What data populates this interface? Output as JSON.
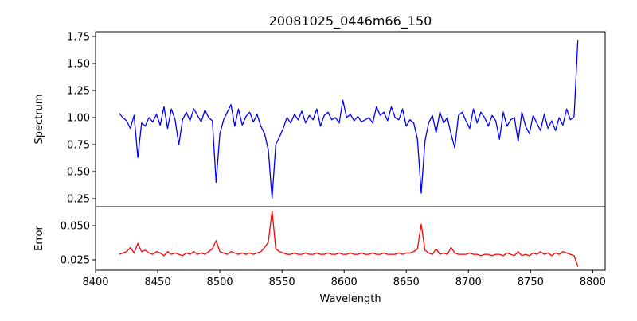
{
  "chart_data": [
    {
      "type": "line",
      "title": "20081025_0446m66_150",
      "xlabel": "",
      "ylabel": "Spectrum",
      "xlim": [
        8400,
        8810
      ],
      "ylim": [
        0.176,
        1.794
      ],
      "yticks": [
        0.25,
        0.5,
        0.75,
        1.0,
        1.25,
        1.5,
        1.75
      ],
      "ytick_labels": [
        "0.25",
        "0.50",
        "0.75",
        "1.00",
        "1.25",
        "1.50",
        "1.75"
      ],
      "color": "#0000ff",
      "x_start": 8419,
      "x_step": 3,
      "values": [
        1.04,
        1.0,
        0.97,
        0.9,
        1.02,
        0.63,
        0.95,
        0.92,
        1.0,
        0.96,
        1.03,
        0.93,
        1.1,
        0.9,
        1.08,
        0.98,
        0.75,
        0.98,
        1.05,
        0.97,
        1.08,
        1.02,
        0.96,
        1.07,
        1.0,
        0.97,
        0.4,
        0.85,
        0.98,
        1.05,
        1.12,
        0.92,
        1.08,
        0.93,
        1.01,
        1.05,
        0.96,
        1.03,
        0.92,
        0.85,
        0.7,
        0.25,
        0.75,
        0.82,
        0.9,
        1.0,
        0.95,
        1.03,
        0.98,
        1.06,
        0.95,
        1.02,
        0.98,
        1.08,
        0.92,
        1.02,
        1.05,
        0.98,
        1.0,
        0.95,
        1.16,
        1.0,
        1.03,
        0.97,
        1.01,
        0.96,
        0.98,
        1.0,
        0.95,
        1.1,
        1.02,
        1.05,
        0.97,
        1.1,
        1.0,
        0.98,
        1.08,
        0.92,
        0.98,
        0.95,
        0.8,
        0.3,
        0.78,
        0.95,
        1.02,
        0.86,
        1.05,
        0.95,
        1.0,
        0.85,
        0.72,
        1.02,
        1.05,
        0.97,
        0.9,
        1.08,
        0.95,
        1.05,
        1.0,
        0.92,
        1.02,
        0.97,
        0.8,
        1.05,
        0.92,
        0.98,
        1.0,
        0.78,
        1.05,
        0.92,
        0.85,
        1.02,
        0.95,
        0.88,
        1.03,
        0.9,
        0.97,
        0.88,
        1.0,
        0.93,
        1.08,
        0.98,
        1.01,
        1.72
      ]
    },
    {
      "type": "line",
      "xlabel": "Wavelength",
      "ylabel": "Error",
      "xlim": [
        8400,
        8810
      ],
      "ylim": [
        0.0174,
        0.064
      ],
      "xticks": [
        8400,
        8450,
        8500,
        8550,
        8600,
        8650,
        8700,
        8750,
        8800
      ],
      "xtick_labels": [
        "8400",
        "8450",
        "8500",
        "8550",
        "8600",
        "8650",
        "8700",
        "8750",
        "8800"
      ],
      "yticks": [
        0.025,
        0.05
      ],
      "ytick_labels": [
        "0.025",
        "0.050"
      ],
      "color": "#ff0000",
      "x_start": 8419,
      "x_step": 3,
      "values": [
        0.029,
        0.03,
        0.031,
        0.034,
        0.03,
        0.037,
        0.031,
        0.032,
        0.03,
        0.029,
        0.031,
        0.03,
        0.028,
        0.031,
        0.029,
        0.03,
        0.029,
        0.028,
        0.03,
        0.029,
        0.031,
        0.029,
        0.03,
        0.029,
        0.031,
        0.033,
        0.039,
        0.031,
        0.03,
        0.029,
        0.031,
        0.03,
        0.029,
        0.03,
        0.029,
        0.03,
        0.029,
        0.03,
        0.031,
        0.034,
        0.038,
        0.061,
        0.033,
        0.031,
        0.03,
        0.029,
        0.029,
        0.03,
        0.029,
        0.029,
        0.03,
        0.029,
        0.029,
        0.03,
        0.029,
        0.029,
        0.03,
        0.029,
        0.029,
        0.03,
        0.029,
        0.029,
        0.03,
        0.029,
        0.029,
        0.03,
        0.029,
        0.029,
        0.03,
        0.029,
        0.029,
        0.03,
        0.029,
        0.029,
        0.029,
        0.03,
        0.029,
        0.03,
        0.03,
        0.031,
        0.033,
        0.051,
        0.032,
        0.03,
        0.029,
        0.033,
        0.029,
        0.03,
        0.029,
        0.034,
        0.03,
        0.029,
        0.029,
        0.029,
        0.03,
        0.029,
        0.029,
        0.028,
        0.029,
        0.029,
        0.028,
        0.029,
        0.029,
        0.028,
        0.03,
        0.029,
        0.028,
        0.031,
        0.028,
        0.029,
        0.028,
        0.03,
        0.029,
        0.031,
        0.029,
        0.03,
        0.028,
        0.03,
        0.029,
        0.031,
        0.03,
        0.029,
        0.028,
        0.02
      ]
    }
  ]
}
